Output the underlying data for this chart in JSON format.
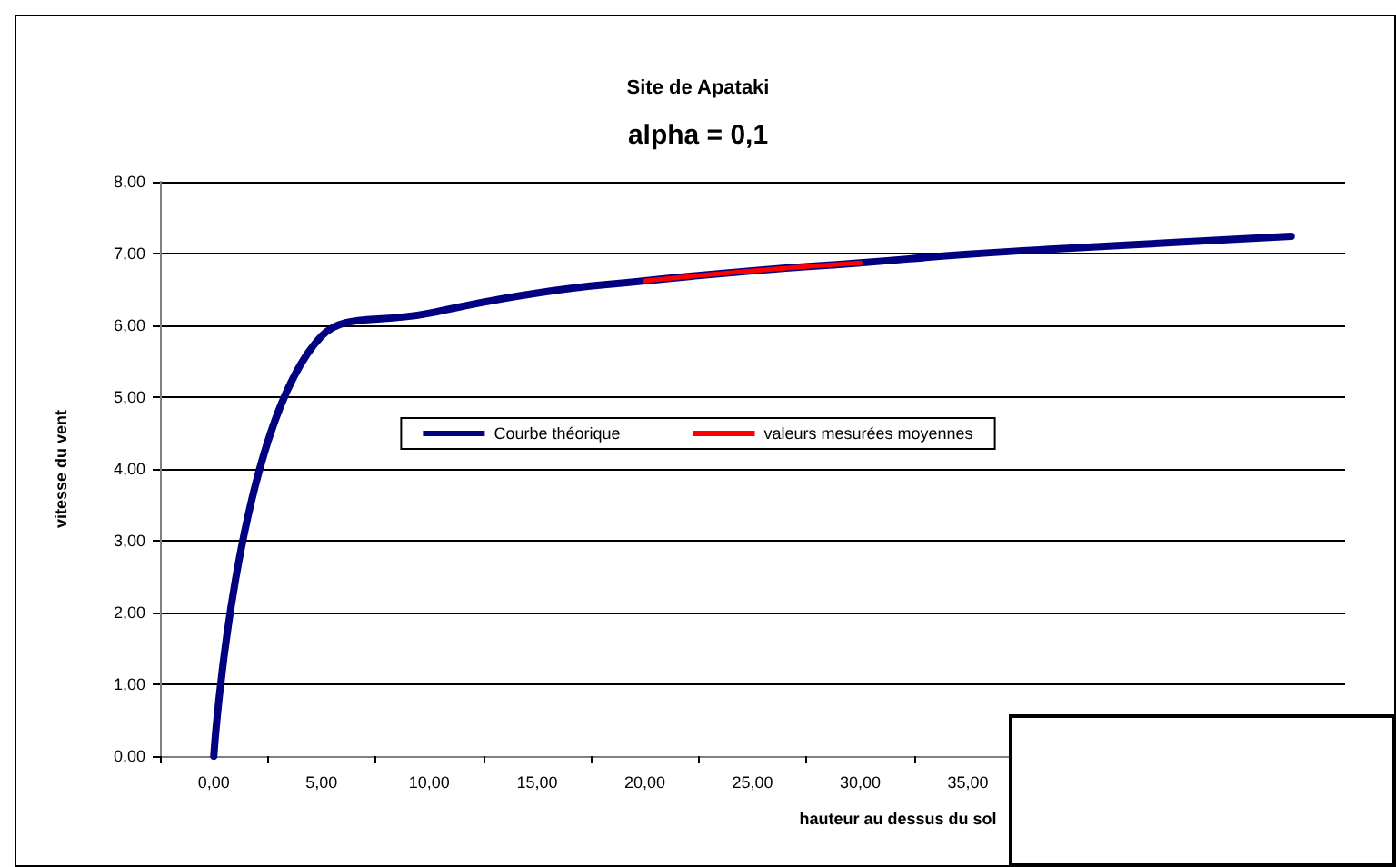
{
  "chart_data": {
    "type": "line",
    "title": "Site de Apataki",
    "subtitle": "alpha = 0,1",
    "xlabel": "hauteur au dessus du sol",
    "ylabel": "vitesse du vent",
    "categories": [
      "0,00",
      "5,00",
      "10,00",
      "15,00",
      "20,00",
      "25,00",
      "30,00",
      "35,00",
      null,
      null,
      null
    ],
    "series": [
      {
        "name": "Courbe théorique",
        "color": "#000080",
        "values": [
          0,
          5.85,
          6.17,
          6.45,
          6.62,
          6.76,
          6.87,
          6.99,
          7.08,
          7.16,
          7.24
        ]
      },
      {
        "name": "valeurs mesurées moyennes",
        "color": "#ff0000",
        "values": [
          null,
          null,
          null,
          null,
          6.62,
          6.76,
          6.87,
          null,
          null,
          null,
          null
        ]
      }
    ],
    "ylim": [
      0,
      8
    ],
    "yticks": [
      {
        "value": 0,
        "label": "0,00"
      },
      {
        "value": 1,
        "label": "1,00"
      },
      {
        "value": 2,
        "label": "2,00"
      },
      {
        "value": 3,
        "label": "3,00"
      },
      {
        "value": 4,
        "label": "4,00"
      },
      {
        "value": 5,
        "label": "5,00"
      },
      {
        "value": 6,
        "label": "6,00"
      },
      {
        "value": 7,
        "label": "7,00"
      },
      {
        "value": 8,
        "label": "8,00"
      }
    ],
    "grid": "y",
    "legend": "center",
    "marker": "none",
    "line_style": "solid"
  }
}
